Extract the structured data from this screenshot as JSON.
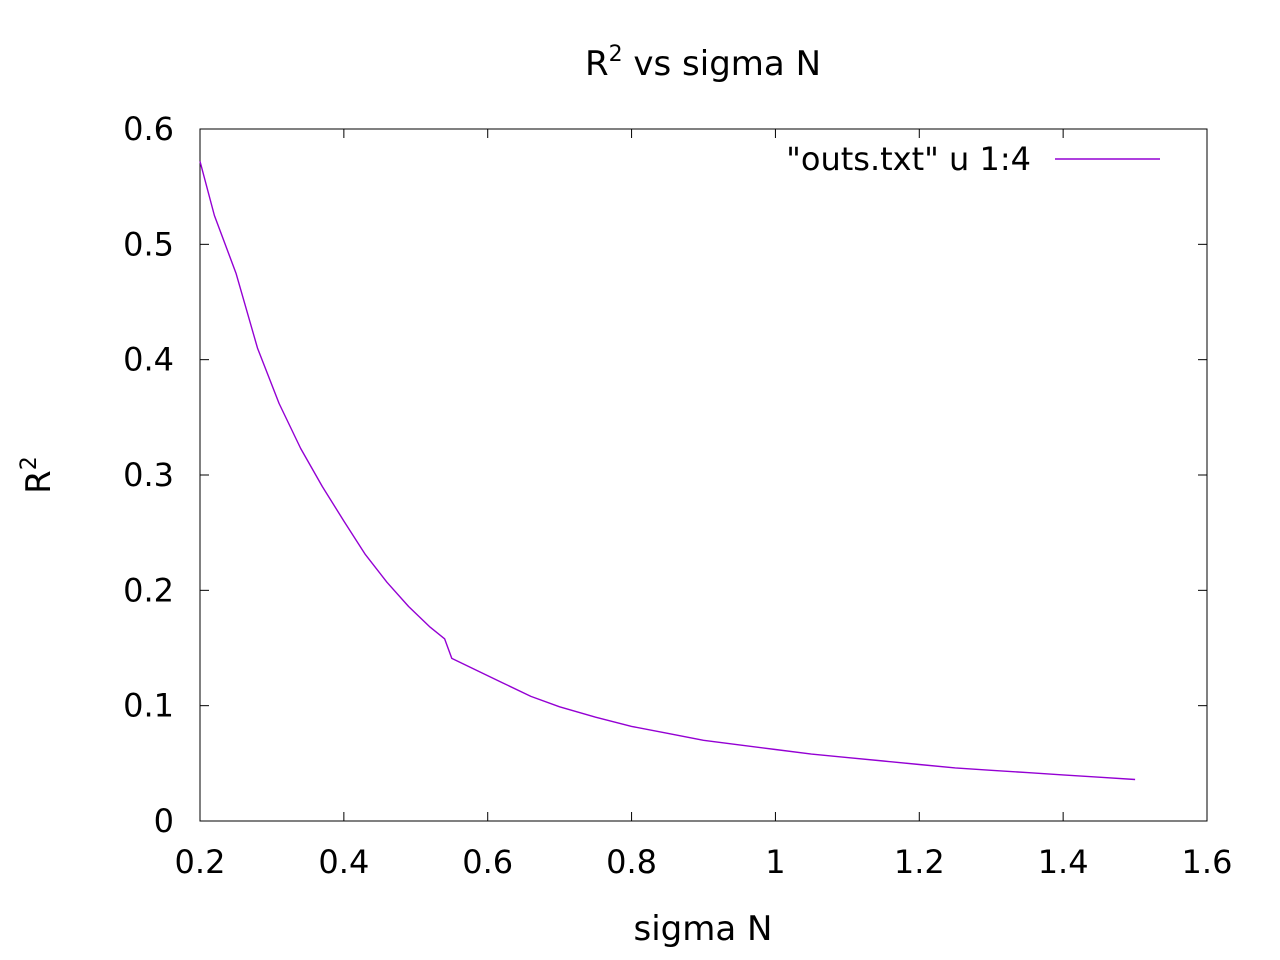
{
  "chart_data": {
    "type": "line",
    "title": {
      "main": "R",
      "sup": "2",
      "rest": " vs sigma N"
    },
    "xlabel": "sigma N",
    "ylabel": {
      "main": "R",
      "sup": "2"
    },
    "xlim": [
      0.2,
      1.6
    ],
    "ylim": [
      0,
      0.6
    ],
    "xticks": [
      0.2,
      0.4,
      0.6,
      0.8,
      1.0,
      1.2,
      1.4,
      1.6
    ],
    "xtick_labels": [
      "0.2",
      "0.4",
      "0.6",
      "0.8",
      "1",
      "1.2",
      "1.4",
      "1.6"
    ],
    "yticks": [
      0,
      0.1,
      0.2,
      0.3,
      0.4,
      0.5,
      0.6
    ],
    "ytick_labels": [
      "0",
      "0.1",
      "0.2",
      "0.3",
      "0.4",
      "0.5",
      "0.6"
    ],
    "grid": false,
    "legend_position": "top-right",
    "series": [
      {
        "name": "\"outs.txt\" u 1:4",
        "color": "#9400d3",
        "x": [
          0.2,
          0.22,
          0.25,
          0.28,
          0.31,
          0.34,
          0.37,
          0.4,
          0.43,
          0.46,
          0.49,
          0.52,
          0.54,
          0.55,
          0.58,
          0.62,
          0.66,
          0.7,
          0.75,
          0.8,
          0.85,
          0.9,
          0.95,
          1.0,
          1.05,
          1.1,
          1.15,
          1.2,
          1.25,
          1.3,
          1.35,
          1.4,
          1.45,
          1.5
        ],
        "y": [
          0.572,
          0.525,
          0.475,
          0.41,
          0.362,
          0.323,
          0.29,
          0.26,
          0.231,
          0.207,
          0.186,
          0.168,
          0.158,
          0.141,
          0.132,
          0.12,
          0.108,
          0.099,
          0.09,
          0.082,
          0.076,
          0.07,
          0.066,
          0.062,
          0.058,
          0.055,
          0.052,
          0.049,
          0.046,
          0.044,
          0.042,
          0.04,
          0.038,
          0.036
        ]
      }
    ]
  }
}
